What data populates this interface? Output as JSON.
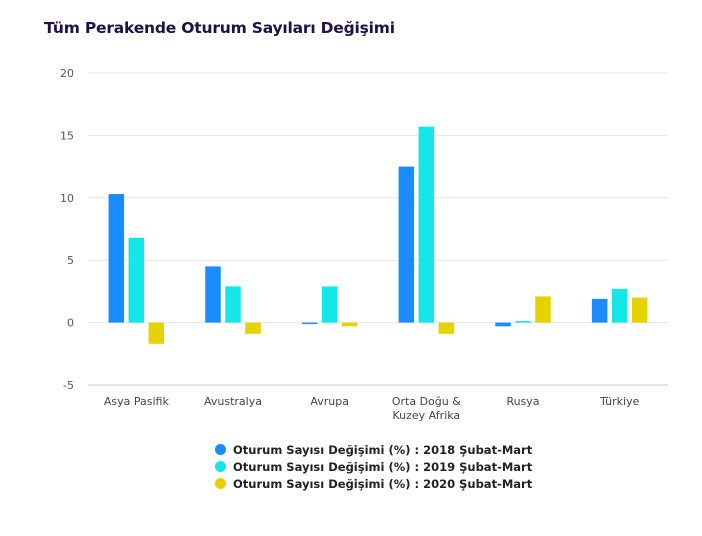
{
  "page": {
    "title": "Tüm Perakende Oturum Sayıları Değişimi"
  },
  "chart_data": {
    "type": "bar",
    "title": "Tüm Perakende Oturum Sayıları Değişimi",
    "xlabel": "",
    "ylabel": "",
    "ylim": [
      -5,
      20
    ],
    "yticks": [
      "20",
      "15",
      "10",
      "5",
      "0",
      "-5"
    ],
    "ytick_values": [
      20,
      15,
      10,
      5,
      0,
      -5
    ],
    "grid": true,
    "legend_position": "bottom-center",
    "categories": [
      [
        "Asya Pasifik"
      ],
      [
        "Avustralya"
      ],
      [
        "Avrupa"
      ],
      [
        "Orta Doğu &",
        "Kuzey Afrika"
      ],
      [
        "Rusya"
      ],
      [
        "Türkiye"
      ]
    ],
    "series": [
      {
        "name": "Oturum Sayısı Değişimi (%) : 2018 Şubat-Mart",
        "color": "#1a8cff",
        "values": [
          10.3,
          4.5,
          -0.1,
          12.5,
          -0.3,
          1.9
        ]
      },
      {
        "name": "Oturum Sayısı Değişimi (%) : 2019 Şubat-Mart",
        "color": "#15e6e6",
        "values": [
          6.8,
          2.9,
          2.9,
          15.7,
          0.1,
          2.7
        ]
      },
      {
        "name": "Oturum Sayısı Değişimi (%) : 2020 Şubat-Mart",
        "color": "#e6d200",
        "values": [
          -1.7,
          -0.9,
          -0.3,
          -0.9,
          2.1,
          2.0
        ]
      }
    ]
  }
}
